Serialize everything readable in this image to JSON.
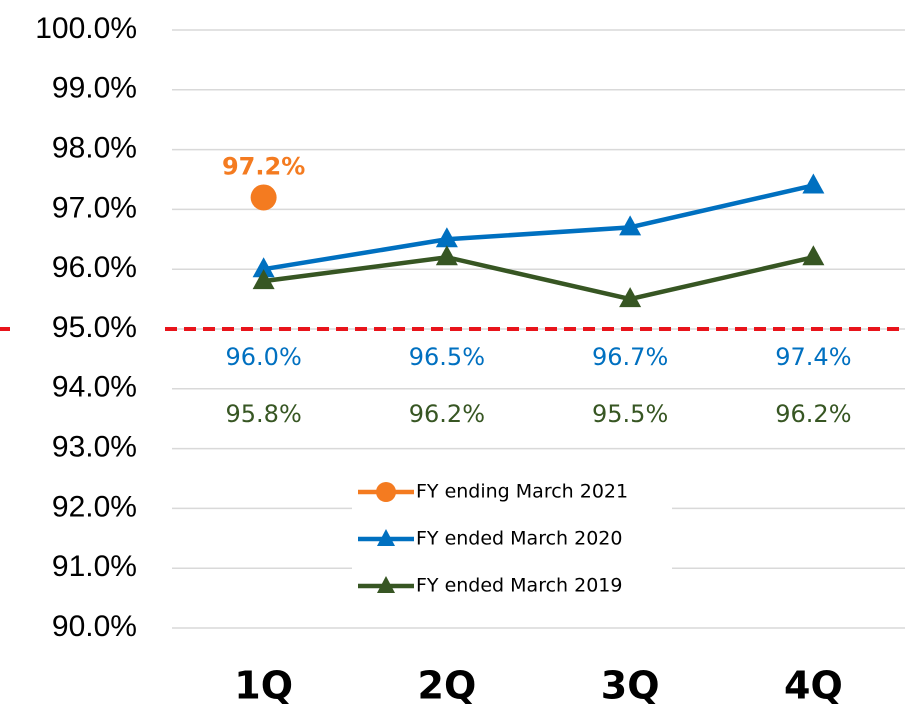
{
  "chart_data": {
    "type": "line",
    "categories": [
      "1Q",
      "2Q",
      "3Q",
      "4Q"
    ],
    "series": [
      {
        "name": "FY ending March 2021",
        "color": "#f47b20",
        "marker": "circle",
        "values": [
          97.2,
          null,
          null,
          null
        ],
        "value_labels": [
          "97.2%",
          null,
          null,
          null
        ]
      },
      {
        "name": "FY ended March 2020",
        "color": "#0070c0",
        "marker": "triangle",
        "values": [
          96.0,
          96.5,
          96.7,
          97.4
        ],
        "value_labels": [
          "96.0%",
          "96.5%",
          "96.7%",
          "97.4%"
        ]
      },
      {
        "name": "FY ended March 2019",
        "color": "#375623",
        "marker": "triangle",
        "values": [
          95.8,
          96.2,
          95.5,
          96.2
        ],
        "value_labels": [
          "95.8%",
          "96.2%",
          "95.5%",
          "96.2%"
        ]
      }
    ],
    "ylim": [
      90,
      100
    ],
    "yticks": [
      {
        "value": 90,
        "label": "90.0%"
      },
      {
        "value": 91,
        "label": "91.0%"
      },
      {
        "value": 92,
        "label": "92.0%"
      },
      {
        "value": 93,
        "label": "93.0%"
      },
      {
        "value": 94,
        "label": "94.0%"
      },
      {
        "value": 95,
        "label": "95.0%"
      },
      {
        "value": 96,
        "label": "96.0%"
      },
      {
        "value": 97,
        "label": "97.0%"
      },
      {
        "value": 98,
        "label": "98.0%"
      },
      {
        "value": 99,
        "label": "99.0%"
      },
      {
        "value": 100,
        "label": "100.0%"
      }
    ],
    "grid": true,
    "reference_line": {
      "value": 95,
      "color": "#e8141b"
    }
  }
}
